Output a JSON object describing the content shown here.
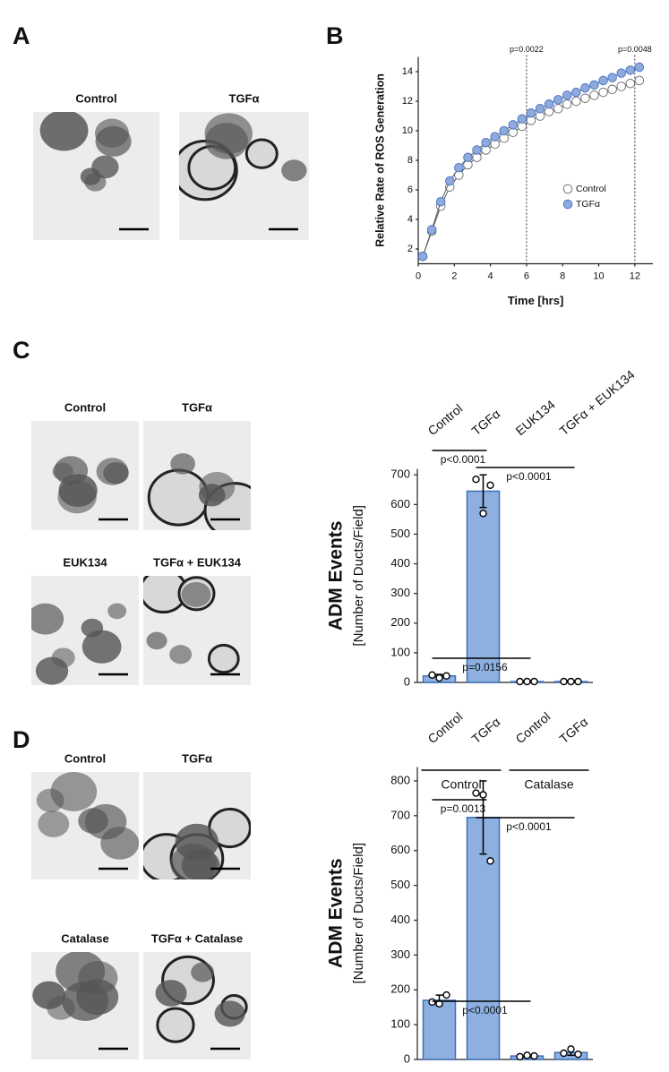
{
  "panels": [
    {
      "label": "A",
      "image_captions": [
        "Control",
        "TGFα"
      ]
    },
    {
      "label": "B"
    },
    {
      "label": "C",
      "image_captions": [
        "Control",
        "TGFα",
        "EUK134",
        "TGFα + EUK134"
      ]
    },
    {
      "label": "D",
      "image_captions": [
        "Control",
        "TGFα",
        "Catalase",
        "TGFα + Catalase"
      ]
    }
  ],
  "chart_data": [
    {
      "type": "line",
      "xlabel": "Time [hrs]",
      "ylabel": "Relative Rate of ROS Generation",
      "x": [
        0.25,
        0.75,
        1.25,
        1.75,
        2.25,
        2.75,
        3.25,
        3.75,
        4.25,
        4.75,
        5.25,
        5.75,
        6.25,
        6.75,
        7.25,
        7.75,
        8.25,
        8.75,
        9.25,
        9.75,
        10.25,
        10.75,
        11.25,
        11.75,
        12.25
      ],
      "series": [
        {
          "name": "Control",
          "color": "#ffffff",
          "values": [
            1.5,
            3.2,
            4.9,
            6.2,
            7.0,
            7.7,
            8.2,
            8.7,
            9.1,
            9.5,
            9.9,
            10.3,
            10.7,
            11.0,
            11.3,
            11.5,
            11.8,
            12.0,
            12.2,
            12.4,
            12.6,
            12.8,
            13.0,
            13.2,
            13.4
          ]
        },
        {
          "name": "TGFα",
          "color": "#8faadc",
          "values": [
            1.5,
            3.3,
            5.2,
            6.6,
            7.5,
            8.2,
            8.7,
            9.2,
            9.6,
            10.0,
            10.4,
            10.8,
            11.2,
            11.5,
            11.8,
            12.1,
            12.4,
            12.6,
            12.9,
            13.1,
            13.4,
            13.6,
            13.9,
            14.1,
            14.3
          ]
        }
      ],
      "xlim": [
        0,
        13
      ],
      "xticks": [
        0,
        2,
        4,
        6,
        8,
        10,
        12
      ],
      "ylim": [
        1,
        15
      ],
      "yticks": [
        2,
        4,
        6,
        8,
        10,
        12,
        14
      ],
      "vlines": [
        {
          "x": 6,
          "label": "p=0.0022"
        },
        {
          "x": 12,
          "label": "p=0.0048"
        }
      ]
    },
    {
      "type": "bar",
      "ylabel": "ADM Events",
      "ylabel_units": "[Number of Ducts/Field]",
      "categories": [
        "Control",
        "TGFα",
        "EUK134",
        "TGFα  + EUK134"
      ],
      "values": [
        22,
        645,
        3,
        3
      ],
      "errors": [
        5,
        55,
        1,
        1
      ],
      "points": [
        [
          25,
          15,
          22
        ],
        [
          685,
          570,
          665
        ],
        [
          3,
          3,
          3
        ],
        [
          3,
          3,
          3
        ]
      ],
      "color": "#8eb0e0",
      "ylim": [
        0,
        720
      ],
      "yticks": [
        0,
        100,
        200,
        300,
        400,
        500,
        600,
        700
      ],
      "comparisons": [
        {
          "groups": [
            0,
            1
          ],
          "label": "p<0.0001"
        },
        {
          "groups": [
            1,
            3
          ],
          "label": "p<0.0001"
        },
        {
          "groups": [
            0,
            2
          ],
          "label": "p=0.0156"
        }
      ]
    },
    {
      "type": "bar",
      "ylabel": "ADM Events",
      "ylabel_units": "[Number of Ducts/Field]",
      "categories": [
        "Control",
        "TGFα",
        "Control",
        "TGFα"
      ],
      "groups": [
        {
          "label": "Control",
          "categories": [
            0,
            1
          ]
        },
        {
          "label": "Catalase",
          "categories": [
            2,
            3
          ]
        }
      ],
      "values": [
        170,
        695,
        10,
        20
      ],
      "errors": [
        15,
        105,
        4,
        8
      ],
      "points": [
        [
          165,
          160,
          185
        ],
        [
          765,
          760,
          570
        ],
        [
          8,
          12,
          10
        ],
        [
          18,
          30,
          15
        ]
      ],
      "color": "#8eb0e0",
      "ylim": [
        0,
        840
      ],
      "yticks": [
        0,
        100,
        200,
        300,
        400,
        500,
        600,
        700,
        800
      ],
      "comparisons": [
        {
          "groups": [
            0,
            1
          ],
          "label": "p=0.0013"
        },
        {
          "groups": [
            1,
            3
          ],
          "label": "p<0.0001"
        },
        {
          "groups": [
            0,
            2
          ],
          "label": "p<0.0001"
        }
      ]
    }
  ]
}
